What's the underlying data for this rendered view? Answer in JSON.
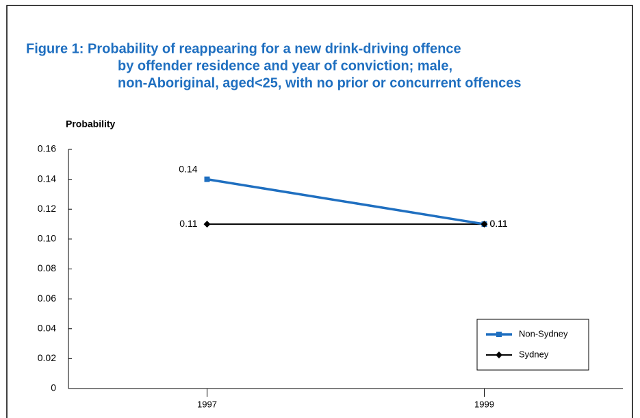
{
  "chart_data": {
    "type": "line",
    "title": [
      "Figure 1:  Probability of reappearing for a new drink-driving offence",
      "by offender residence and year of conviction; male,",
      "non-Aboriginal, aged<25, with no prior or concurrent offences"
    ],
    "y_label": "Probability",
    "categories": [
      "1997",
      "1999"
    ],
    "series": [
      {
        "name": "Non-Sydney",
        "color": "#1f6fc0",
        "values": [
          0.14,
          0.11
        ]
      },
      {
        "name": "Sydney",
        "color": "#000000",
        "values": [
          0.11,
          0.11
        ]
      }
    ],
    "ylim": [
      0,
      0.16
    ],
    "yticks": [
      0,
      0.02,
      0.04,
      0.06,
      0.08,
      {
        "value": 0.1,
        "label": "0.10"
      },
      0.12,
      0.14,
      0.16
    ],
    "legend": "lower right"
  }
}
